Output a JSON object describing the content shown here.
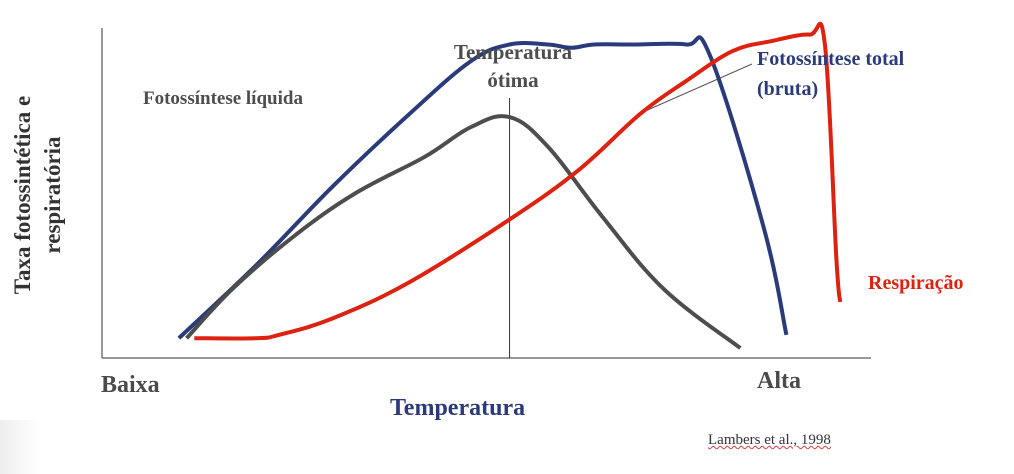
{
  "chart_data": {
    "type": "line",
    "xlabel": "Temperatura",
    "x_tick_low": "Baixa",
    "x_tick_high": "Alta",
    "ylabel_line1": "Taxa  fotossintética e",
    "ylabel_line2": "respiratória",
    "optimum_label_line1": "Temperatura",
    "optimum_label_line2": "ótima",
    "source": "Lambers et al., 1998",
    "xlim": [
      0,
      100
    ],
    "ylim": [
      0,
      100
    ],
    "optimum_x": 53,
    "series": [
      {
        "name": "Fotossíntese total (bruta)",
        "label_line1": "Fotossíntese total",
        "label_line2": "(bruta)",
        "color": "#2b3a7a",
        "x": [
          10,
          20,
          30,
          40,
          48,
          53,
          58,
          61,
          64,
          69,
          76,
          79,
          86,
          89
        ],
        "y": [
          6,
          28,
          52,
          74,
          90,
          95,
          95,
          94,
          95,
          95,
          95,
          92,
          40,
          7
        ]
      },
      {
        "name": "Fotossíntese líquida",
        "label_line1": "Fotossíntese líquida",
        "color": "#4d4d4d",
        "x": [
          11,
          17,
          25,
          33,
          42,
          48,
          53,
          58,
          65,
          73,
          83
        ],
        "y": [
          6,
          21,
          37,
          50,
          61,
          70,
          73,
          64,
          43,
          21,
          3
        ]
      },
      {
        "name": "Respiração",
        "label_line1": "Respiração",
        "color": "#dd2211",
        "x": [
          12,
          20,
          23,
          30,
          40,
          53,
          62,
          70,
          76,
          82,
          87,
          92,
          94,
          95.5,
          96
        ],
        "y": [
          6,
          6,
          7,
          12,
          23,
          42,
          57,
          74,
          84,
          93,
          96,
          98,
          95,
          30,
          17
        ]
      }
    ]
  }
}
